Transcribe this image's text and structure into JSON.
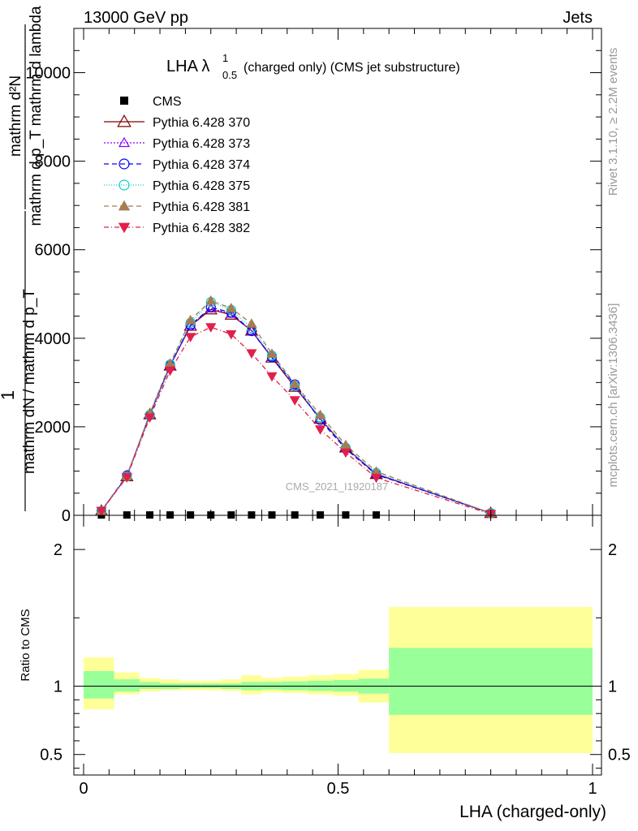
{
  "header": {
    "left": "13000 GeV pp",
    "right": "Jets"
  },
  "plot_title": {
    "main": "LHA λ",
    "sup": "1",
    "sub": "0.5",
    "rest": "(charged only) (CMS jet substructure)"
  },
  "side_labels": {
    "rivet": "Rivet 3.1.10, ≥ 2.2M events",
    "mcplots": "mcplots.cern.ch [arXiv:1306.3436]"
  },
  "watermark": "CMS_2021_I1920187",
  "ylabel_top": {
    "numerator": "mathrm d²N",
    "denominator": "mathrm d p_T mathrm d lambda",
    "one": "1",
    "one_denominator": "mathrm dN / mathrm d p_T"
  },
  "ylabel_bottom": "Ratio to CMS",
  "xlabel": "LHA (charged-only)",
  "colors": {
    "s370": "#7f0000",
    "s373": "#8000ff",
    "s374": "#0000ff",
    "s375": "#00d4c0",
    "s381": "#a67c52",
    "s382": "#e0204a",
    "band_yellow": "#ffff99",
    "band_green": "#99ff99"
  },
  "chart_data": [
    {
      "type": "line",
      "title": "LHA λ^1_0.5 (charged only) (CMS jet substructure)",
      "xlim": [
        0,
        1
      ],
      "ylim": [
        0,
        11000
      ],
      "y_ticks": [
        0,
        2000,
        4000,
        6000,
        8000,
        10000
      ],
      "y_tick_labels": [
        "0",
        "2000",
        "4000",
        "6000",
        "8000",
        "10000"
      ],
      "x": [
        0.035,
        0.085,
        0.13,
        0.17,
        0.21,
        0.25,
        0.29,
        0.33,
        0.37,
        0.415,
        0.465,
        0.515,
        0.575,
        0.8
      ],
      "series": [
        {
          "name": "CMS",
          "marker": "square",
          "color": "#000000",
          "values": [
            8,
            8,
            8,
            8,
            8,
            8,
            8,
            8,
            8,
            8,
            8,
            8,
            8,
            null
          ]
        },
        {
          "name": "Pythia 6.428 370",
          "marker": "triangle-open",
          "dash": "",
          "color_key": "s370",
          "values": [
            100,
            880,
            2280,
            3380,
            4280,
            4650,
            4530,
            4170,
            3560,
            2900,
            2180,
            1530,
            930,
            50
          ]
        },
        {
          "name": "Pythia 6.428 373",
          "marker": "triangle-open-small",
          "dash": "2,2",
          "color_key": "s373",
          "values": [
            100,
            880,
            2270,
            3380,
            4300,
            4670,
            4550,
            4170,
            3570,
            2910,
            2190,
            1530,
            930,
            50
          ]
        },
        {
          "name": "Pythia 6.428 374",
          "marker": "circle-open",
          "dash": "6,4",
          "color_key": "s374",
          "values": [
            100,
            900,
            2260,
            3380,
            4290,
            4700,
            4580,
            4160,
            3570,
            2960,
            2150,
            1500,
            920,
            50
          ]
        },
        {
          "name": "Pythia 6.428 375",
          "marker": "circle-open",
          "dash": "1,2",
          "color_key": "s375",
          "values": [
            100,
            880,
            2270,
            3410,
            4350,
            4820,
            4640,
            4230,
            3610,
            2920,
            2210,
            1530,
            960,
            50
          ]
        },
        {
          "name": "Pythia 6.428 381",
          "marker": "triangle-filled",
          "dash": "6,4",
          "color_key": "s381",
          "values": [
            100,
            880,
            2300,
            3430,
            4410,
            4850,
            4680,
            4330,
            3650,
            2970,
            2270,
            1590,
            990,
            50
          ]
        },
        {
          "name": "Pythia 6.428 382",
          "marker": "triangle-down-filled",
          "dash": "6,3,1,3",
          "color_key": "s382",
          "values": [
            100,
            860,
            2210,
            3270,
            4030,
            4250,
            4090,
            3660,
            3140,
            2600,
            1940,
            1420,
            850,
            30
          ]
        }
      ]
    },
    {
      "type": "area",
      "ylabel": "Ratio to CMS",
      "xlabel": "LHA (charged-only)",
      "xlim": [
        0,
        1
      ],
      "ylim": [
        0.35,
        2.25
      ],
      "x_ticks": [
        0,
        0.5,
        1
      ],
      "x_tick_labels": [
        "0",
        "0.5",
        "1"
      ],
      "y_ticks": [
        0.5,
        1,
        2
      ],
      "y_tick_labels": [
        "0.5",
        "1",
        "2"
      ],
      "bins": [
        {
          "x0": 0.0,
          "x1": 0.06,
          "green": [
            0.91,
            1.11
          ],
          "yellow": [
            0.83,
            1.21
          ]
        },
        {
          "x0": 0.06,
          "x1": 0.11,
          "green": [
            0.96,
            1.05
          ],
          "yellow": [
            0.94,
            1.1
          ]
        },
        {
          "x0": 0.11,
          "x1": 0.15,
          "green": [
            0.98,
            1.03
          ],
          "yellow": [
            0.96,
            1.06
          ]
        },
        {
          "x0": 0.15,
          "x1": 0.19,
          "green": [
            0.98,
            1.02
          ],
          "yellow": [
            0.97,
            1.05
          ]
        },
        {
          "x0": 0.19,
          "x1": 0.23,
          "green": [
            0.985,
            1.02
          ],
          "yellow": [
            0.97,
            1.04
          ]
        },
        {
          "x0": 0.23,
          "x1": 0.27,
          "green": [
            0.985,
            1.02
          ],
          "yellow": [
            0.97,
            1.04
          ]
        },
        {
          "x0": 0.27,
          "x1": 0.31,
          "green": [
            0.98,
            1.02
          ],
          "yellow": [
            0.965,
            1.05
          ]
        },
        {
          "x0": 0.31,
          "x1": 0.35,
          "green": [
            0.97,
            1.03
          ],
          "yellow": [
            0.94,
            1.08
          ]
        },
        {
          "x0": 0.35,
          "x1": 0.39,
          "green": [
            0.975,
            1.03
          ],
          "yellow": [
            0.955,
            1.06
          ]
        },
        {
          "x0": 0.39,
          "x1": 0.44,
          "green": [
            0.97,
            1.035
          ],
          "yellow": [
            0.95,
            1.07
          ]
        },
        {
          "x0": 0.44,
          "x1": 0.49,
          "green": [
            0.965,
            1.04
          ],
          "yellow": [
            0.94,
            1.08
          ]
        },
        {
          "x0": 0.49,
          "x1": 0.54,
          "green": [
            0.96,
            1.045
          ],
          "yellow": [
            0.93,
            1.09
          ]
        },
        {
          "x0": 0.54,
          "x1": 0.6,
          "green": [
            0.945,
            1.055
          ],
          "yellow": [
            0.88,
            1.12
          ]
        },
        {
          "x0": 0.6,
          "x1": 1.0,
          "green": [
            0.79,
            1.28
          ],
          "yellow": [
            0.51,
            1.58
          ]
        }
      ],
      "reference": 1
    }
  ]
}
